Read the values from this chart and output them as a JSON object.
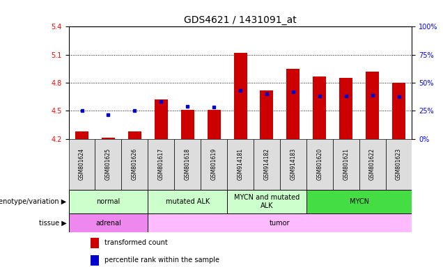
{
  "title": "GDS4621 / 1431091_at",
  "samples": [
    "GSM801624",
    "GSM801625",
    "GSM801626",
    "GSM801617",
    "GSM801618",
    "GSM801619",
    "GSM914181",
    "GSM914182",
    "GSM914183",
    "GSM801620",
    "GSM801621",
    "GSM801622",
    "GSM801623"
  ],
  "bar_values": [
    4.28,
    4.21,
    4.28,
    4.62,
    4.51,
    4.51,
    5.12,
    4.72,
    4.95,
    4.87,
    4.85,
    4.92,
    4.8
  ],
  "dot_values": [
    4.5,
    4.46,
    4.5,
    4.6,
    4.55,
    4.54,
    4.72,
    4.68,
    4.7,
    4.66,
    4.66,
    4.67,
    4.65
  ],
  "ylim_left": [
    4.2,
    5.4
  ],
  "ylim_right": [
    0,
    100
  ],
  "yticks_left": [
    4.2,
    4.5,
    4.8,
    5.1,
    5.4
  ],
  "yticks_right": [
    0,
    25,
    50,
    75,
    100
  ],
  "bar_color": "#cc0000",
  "dot_color": "#0000cc",
  "bar_width": 0.5,
  "groups": [
    {
      "label": "normal",
      "start": 0,
      "end": 3,
      "color": "#ccffcc"
    },
    {
      "label": "mutated ALK",
      "start": 3,
      "end": 6,
      "color": "#ccffcc"
    },
    {
      "label": "MYCN and mutated\nALK",
      "start": 6,
      "end": 9,
      "color": "#ccffcc"
    },
    {
      "label": "MYCN",
      "start": 9,
      "end": 13,
      "color": "#44dd44"
    }
  ],
  "tissue_groups": [
    {
      "label": "adrenal",
      "start": 0,
      "end": 3,
      "color": "#ee88ee"
    },
    {
      "label": "tumor",
      "start": 3,
      "end": 13,
      "color": "#ffbbff"
    }
  ],
  "genotype_label": "genotype/variation",
  "tissue_label": "tissue",
  "legend": [
    {
      "color": "#cc0000",
      "label": "transformed count"
    },
    {
      "color": "#0000cc",
      "label": "percentile rank within the sample"
    }
  ],
  "dotted_lines": [
    4.5,
    4.8,
    5.1
  ],
  "background_color": "#ffffff",
  "title_fontsize": 10,
  "tick_fontsize": 7,
  "sample_fontsize": 5.5,
  "label_fontsize": 7,
  "group_fontsize": 7
}
